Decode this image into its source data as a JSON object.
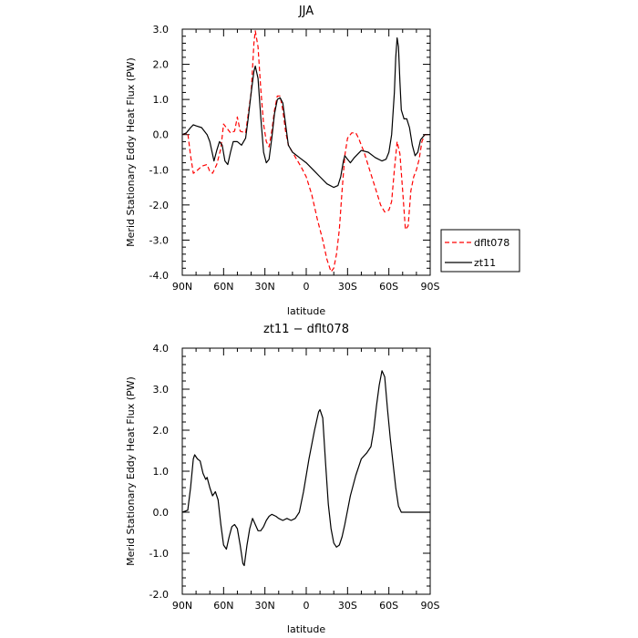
{
  "chart_data": [
    {
      "type": "line",
      "title": "JJA",
      "xlabel": "latitude",
      "ylabel": "Merid Stationary Eddy Heat Flux (PW)",
      "xlim": [
        90,
        -90
      ],
      "ylim": [
        -4.0,
        3.0
      ],
      "x_ticks": [
        {
          "value": 90,
          "label": "90N"
        },
        {
          "value": 60,
          "label": "60N"
        },
        {
          "value": 30,
          "label": "30N"
        },
        {
          "value": 0,
          "label": "0"
        },
        {
          "value": -30,
          "label": "30S"
        },
        {
          "value": -60,
          "label": "60S"
        },
        {
          "value": -90,
          "label": "90S"
        }
      ],
      "y_ticks": [
        {
          "value": 3.0,
          "label": "3.0"
        },
        {
          "value": 2.0,
          "label": "2.0"
        },
        {
          "value": 1.0,
          "label": "1.0"
        },
        {
          "value": 0.0,
          "label": "0.0"
        },
        {
          "value": -1.0,
          "label": "-1.0"
        },
        {
          "value": -2.0,
          "label": "-2.0"
        },
        {
          "value": -3.0,
          "label": "-3.0"
        },
        {
          "value": -4.0,
          "label": "-4.0"
        }
      ],
      "grid": false,
      "legend": "outside-right-bottom",
      "series": [
        {
          "name": "dflt078",
          "color": "#ff0000",
          "style": "dashed",
          "points": [
            [
              90,
              0.0
            ],
            [
              86,
              0.05
            ],
            [
              84,
              -0.6
            ],
            [
              82,
              -1.1
            ],
            [
              80,
              -1.05
            ],
            [
              76,
              -0.9
            ],
            [
              72,
              -0.85
            ],
            [
              70,
              -1.05
            ],
            [
              68,
              -1.1
            ],
            [
              65,
              -0.85
            ],
            [
              62,
              -0.4
            ],
            [
              60,
              0.3
            ],
            [
              57,
              0.15
            ],
            [
              55,
              0.05
            ],
            [
              52,
              0.1
            ],
            [
              50,
              0.5
            ],
            [
              48,
              0.1
            ],
            [
              44,
              0.05
            ],
            [
              40,
              1.2
            ],
            [
              38,
              2.6
            ],
            [
              37,
              2.95
            ],
            [
              35,
              2.5
            ],
            [
              33,
              1.3
            ],
            [
              31,
              0.3
            ],
            [
              29,
              -0.2
            ],
            [
              27,
              -0.35
            ],
            [
              25,
              0.1
            ],
            [
              23,
              0.7
            ],
            [
              21,
              1.1
            ],
            [
              19,
              1.1
            ],
            [
              17,
              0.7
            ],
            [
              15,
              0.1
            ],
            [
              13,
              -0.3
            ],
            [
              10,
              -0.5
            ],
            [
              7,
              -0.7
            ],
            [
              4,
              -0.9
            ],
            [
              0,
              -1.2
            ],
            [
              -4,
              -1.7
            ],
            [
              -8,
              -2.4
            ],
            [
              -12,
              -3.0
            ],
            [
              -15,
              -3.55
            ],
            [
              -18,
              -3.9
            ],
            [
              -20,
              -3.8
            ],
            [
              -22,
              -3.4
            ],
            [
              -24,
              -2.7
            ],
            [
              -26,
              -1.6
            ],
            [
              -28,
              -0.6
            ],
            [
              -30,
              -0.1
            ],
            [
              -33,
              0.05
            ],
            [
              -36,
              0.05
            ],
            [
              -38,
              -0.1
            ],
            [
              -42,
              -0.5
            ],
            [
              -46,
              -1.0
            ],
            [
              -50,
              -1.5
            ],
            [
              -54,
              -2.0
            ],
            [
              -57,
              -2.2
            ],
            [
              -60,
              -2.15
            ],
            [
              -62,
              -1.9
            ],
            [
              -64,
              -1.0
            ],
            [
              -66,
              -0.2
            ],
            [
              -68,
              -0.55
            ],
            [
              -70,
              -1.6
            ],
            [
              -72,
              -2.7
            ],
            [
              -74,
              -2.6
            ],
            [
              -76,
              -1.6
            ],
            [
              -78,
              -1.2
            ],
            [
              -80,
              -1.0
            ],
            [
              -82,
              -0.7
            ],
            [
              -84,
              -0.2
            ],
            [
              -86,
              0.0
            ],
            [
              -90,
              0.0
            ]
          ]
        },
        {
          "name": "zt11",
          "color": "#000000",
          "style": "solid",
          "points": [
            [
              90,
              0.0
            ],
            [
              87,
              0.05
            ],
            [
              84,
              0.2
            ],
            [
              82,
              0.28
            ],
            [
              80,
              0.25
            ],
            [
              76,
              0.2
            ],
            [
              72,
              0.0
            ],
            [
              70,
              -0.2
            ],
            [
              67,
              -0.75
            ],
            [
              65,
              -0.45
            ],
            [
              63,
              -0.2
            ],
            [
              61,
              -0.3
            ],
            [
              59,
              -0.75
            ],
            [
              57,
              -0.85
            ],
            [
              55,
              -0.5
            ],
            [
              53,
              -0.2
            ],
            [
              50,
              -0.2
            ],
            [
              47,
              -0.3
            ],
            [
              44,
              -0.1
            ],
            [
              42,
              0.5
            ],
            [
              40,
              1.2
            ],
            [
              38,
              1.8
            ],
            [
              37,
              1.95
            ],
            [
              35,
              1.6
            ],
            [
              33,
              0.5
            ],
            [
              31,
              -0.5
            ],
            [
              29,
              -0.8
            ],
            [
              27,
              -0.7
            ],
            [
              25,
              -0.1
            ],
            [
              23,
              0.6
            ],
            [
              21,
              1.0
            ],
            [
              19,
              1.05
            ],
            [
              17,
              0.9
            ],
            [
              15,
              0.3
            ],
            [
              13,
              -0.3
            ],
            [
              10,
              -0.5
            ],
            [
              5,
              -0.65
            ],
            [
              0,
              -0.8
            ],
            [
              -5,
              -1.0
            ],
            [
              -10,
              -1.2
            ],
            [
              -15,
              -1.4
            ],
            [
              -20,
              -1.5
            ],
            [
              -23,
              -1.45
            ],
            [
              -25,
              -1.2
            ],
            [
              -27,
              -0.75
            ],
            [
              -28,
              -0.6
            ],
            [
              -30,
              -0.7
            ],
            [
              -32,
              -0.8
            ],
            [
              -35,
              -0.65
            ],
            [
              -40,
              -0.45
            ],
            [
              -45,
              -0.5
            ],
            [
              -50,
              -0.65
            ],
            [
              -55,
              -0.75
            ],
            [
              -58,
              -0.7
            ],
            [
              -60,
              -0.5
            ],
            [
              -62,
              0.0
            ],
            [
              -64,
              1.2
            ],
            [
              -65,
              2.2
            ],
            [
              -66,
              2.75
            ],
            [
              -67,
              2.5
            ],
            [
              -68,
              1.5
            ],
            [
              -69,
              0.7
            ],
            [
              -71,
              0.45
            ],
            [
              -73,
              0.45
            ],
            [
              -75,
              0.2
            ],
            [
              -77,
              -0.3
            ],
            [
              -79,
              -0.6
            ],
            [
              -81,
              -0.5
            ],
            [
              -83,
              -0.15
            ],
            [
              -86,
              0.0
            ],
            [
              -90,
              0.0
            ]
          ]
        }
      ]
    },
    {
      "type": "line",
      "title": "zt11 − dflt078",
      "xlabel": "latitude",
      "ylabel": "Merid Stationary Eddy Heat Flux (PW)",
      "xlim": [
        90,
        -90
      ],
      "ylim": [
        -2.0,
        4.0
      ],
      "x_ticks": [
        {
          "value": 90,
          "label": "90N"
        },
        {
          "value": 60,
          "label": "60N"
        },
        {
          "value": 30,
          "label": "30N"
        },
        {
          "value": 0,
          "label": "0"
        },
        {
          "value": -30,
          "label": "30S"
        },
        {
          "value": -60,
          "label": "60S"
        },
        {
          "value": -90,
          "label": "90S"
        }
      ],
      "y_ticks": [
        {
          "value": 4.0,
          "label": "4.0"
        },
        {
          "value": 3.0,
          "label": "3.0"
        },
        {
          "value": 2.0,
          "label": "2.0"
        },
        {
          "value": 1.0,
          "label": "1.0"
        },
        {
          "value": 0.0,
          "label": "0.0"
        },
        {
          "value": -1.0,
          "label": "-1.0"
        },
        {
          "value": -2.0,
          "label": "-2.0"
        }
      ],
      "grid": false,
      "series": [
        {
          "color": "#000000",
          "style": "solid",
          "points": [
            [
              90,
              0.0
            ],
            [
              86,
              0.05
            ],
            [
              84,
              0.6
            ],
            [
              82,
              1.3
            ],
            [
              81,
              1.4
            ],
            [
              79,
              1.3
            ],
            [
              77,
              1.25
            ],
            [
              75,
              0.95
            ],
            [
              73,
              0.8
            ],
            [
              72,
              0.85
            ],
            [
              70,
              0.6
            ],
            [
              68,
              0.4
            ],
            [
              66,
              0.5
            ],
            [
              64,
              0.3
            ],
            [
              62,
              -0.3
            ],
            [
              60,
              -0.8
            ],
            [
              58,
              -0.9
            ],
            [
              56,
              -0.6
            ],
            [
              54,
              -0.35
            ],
            [
              52,
              -0.3
            ],
            [
              50,
              -0.4
            ],
            [
              48,
              -0.8
            ],
            [
              46,
              -1.25
            ],
            [
              45,
              -1.3
            ],
            [
              43,
              -0.8
            ],
            [
              41,
              -0.4
            ],
            [
              39,
              -0.15
            ],
            [
              37,
              -0.3
            ],
            [
              35,
              -0.45
            ],
            [
              33,
              -0.45
            ],
            [
              31,
              -0.35
            ],
            [
              29,
              -0.2
            ],
            [
              27,
              -0.1
            ],
            [
              25,
              -0.05
            ],
            [
              22,
              -0.1
            ],
            [
              20,
              -0.15
            ],
            [
              17,
              -0.2
            ],
            [
              14,
              -0.15
            ],
            [
              11,
              -0.2
            ],
            [
              8,
              -0.15
            ],
            [
              5,
              0.0
            ],
            [
              2,
              0.5
            ],
            [
              -2,
              1.3
            ],
            [
              -6,
              2.0
            ],
            [
              -9,
              2.45
            ],
            [
              -10,
              2.5
            ],
            [
              -12,
              2.3
            ],
            [
              -14,
              1.2
            ],
            [
              -16,
              0.2
            ],
            [
              -18,
              -0.4
            ],
            [
              -20,
              -0.75
            ],
            [
              -22,
              -0.85
            ],
            [
              -24,
              -0.8
            ],
            [
              -26,
              -0.6
            ],
            [
              -28,
              -0.3
            ],
            [
              -32,
              0.4
            ],
            [
              -36,
              0.9
            ],
            [
              -40,
              1.3
            ],
            [
              -44,
              1.45
            ],
            [
              -47,
              1.6
            ],
            [
              -49,
              2.0
            ],
            [
              -51,
              2.6
            ],
            [
              -53,
              3.1
            ],
            [
              -55,
              3.45
            ],
            [
              -57,
              3.3
            ],
            [
              -59,
              2.5
            ],
            [
              -61,
              1.8
            ],
            [
              -63,
              1.2
            ],
            [
              -65,
              0.6
            ],
            [
              -67,
              0.15
            ],
            [
              -69,
              0.0
            ],
            [
              -72,
              0.0
            ],
            [
              -90,
              0.0
            ]
          ]
        }
      ]
    }
  ]
}
